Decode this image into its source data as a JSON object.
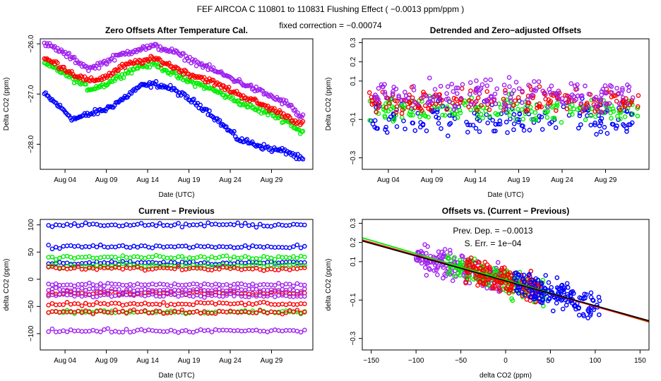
{
  "figure": {
    "suptitle": "FEF   AIRCOA C   110801 to 110831   Flushing Effect ( −0.0013 ppm/ppm )",
    "subtitle": "fixed correction = −0.00074"
  },
  "colors": {
    "blue": "#0000ff",
    "green": "#00ee00",
    "red": "#ff0000",
    "purple": "#a020f0",
    "fit_black": "#000000"
  },
  "chart_data": [
    {
      "id": "p1",
      "type": "scatter",
      "title": "Zero Offsets After Temperature Cal.",
      "xlabel": "Date (UTC)",
      "ylabel": "Delta CO2 (ppm)",
      "xlim": [
        0,
        33
      ],
      "ylim": [
        -28.5,
        -25.9
      ],
      "xticks": [
        {
          "v": 3,
          "label": "Aug 04"
        },
        {
          "v": 8,
          "label": "Aug 09"
        },
        {
          "v": 13,
          "label": "Aug 14"
        },
        {
          "v": 18,
          "label": "Aug 19"
        },
        {
          "v": 23,
          "label": "Aug 24"
        },
        {
          "v": 28,
          "label": "Aug 29"
        }
      ],
      "yticks": [
        {
          "v": -28.0,
          "label": "−28.0"
        },
        {
          "v": -27.0,
          "label": "−27.0"
        },
        {
          "v": -26.0,
          "label": "−26.0"
        }
      ],
      "series": [
        {
          "name": "blue",
          "color": "#0000ff",
          "x": [
            0.5,
            2,
            4,
            6,
            8,
            10,
            12,
            14,
            16,
            18,
            20,
            22,
            24,
            26,
            28,
            30,
            31.5
          ],
          "y": [
            -27.0,
            -27.2,
            -27.5,
            -27.4,
            -27.3,
            -27.1,
            -26.85,
            -26.8,
            -26.9,
            -27.1,
            -27.3,
            -27.6,
            -27.9,
            -28.0,
            -28.1,
            -28.15,
            -28.3
          ]
        },
        {
          "name": "green",
          "color": "#00ee00",
          "x": [
            0.5,
            2,
            4,
            6,
            8,
            10,
            12,
            14,
            16,
            18,
            20,
            22,
            24,
            26,
            28,
            30,
            31.5
          ],
          "y": [
            -26.4,
            -26.5,
            -26.7,
            -26.9,
            -26.8,
            -26.6,
            -26.45,
            -26.4,
            -26.6,
            -26.75,
            -26.85,
            -27.0,
            -27.15,
            -27.3,
            -27.4,
            -27.55,
            -27.75
          ]
        },
        {
          "name": "red",
          "color": "#ff0000",
          "x": [
            0.5,
            2,
            4,
            6,
            8,
            10,
            12,
            14,
            16,
            18,
            20,
            22,
            24,
            26,
            28,
            30,
            31.5
          ],
          "y": [
            -26.3,
            -26.4,
            -26.6,
            -26.75,
            -26.65,
            -26.45,
            -26.35,
            -26.3,
            -26.45,
            -26.6,
            -26.7,
            -26.85,
            -27.0,
            -27.15,
            -27.3,
            -27.45,
            -27.6
          ]
        },
        {
          "name": "purple",
          "color": "#a020f0",
          "x": [
            0.5,
            2,
            4,
            6,
            8,
            10,
            12,
            14,
            16,
            18,
            20,
            22,
            24,
            26,
            28,
            30,
            31.5
          ],
          "y": [
            -26.0,
            -26.1,
            -26.3,
            -26.5,
            -26.35,
            -26.2,
            -26.1,
            -26.05,
            -26.15,
            -26.3,
            -26.45,
            -26.6,
            -26.75,
            -26.9,
            -27.05,
            -27.2,
            -27.45
          ]
        }
      ]
    },
    {
      "id": "p2",
      "type": "scatter",
      "title": "Detrended and Zero−adjusted Offsets",
      "xlabel": "Date (UTC)",
      "ylabel": "Delta CO2 (ppm)",
      "xlim": [
        0,
        33
      ],
      "ylim": [
        -0.36,
        0.32
      ],
      "xticks": [
        {
          "v": 3,
          "label": "Aug 04"
        },
        {
          "v": 8,
          "label": "Aug 09"
        },
        {
          "v": 13,
          "label": "Aug 14"
        },
        {
          "v": 18,
          "label": "Aug 19"
        },
        {
          "v": 23,
          "label": "Aug 24"
        },
        {
          "v": 28,
          "label": "Aug 29"
        }
      ],
      "yticks": [
        {
          "v": -0.3,
          "label": "−0.3"
        },
        {
          "v": -0.1,
          "label": "−0.1"
        },
        {
          "v": 0.1,
          "label": "0.1"
        },
        {
          "v": 0.2,
          "label": "0.2"
        },
        {
          "v": 0.3,
          "label": "0.3"
        }
      ],
      "series": [
        {
          "name": "blue",
          "color": "#0000ff",
          "x": [
            0.5,
            32
          ],
          "y": [
            -0.1,
            -0.1
          ],
          "spread": 0.12
        },
        {
          "name": "green",
          "color": "#00ee00",
          "x": [
            0.5,
            32
          ],
          "y": [
            -0.05,
            -0.05
          ],
          "spread": 0.08
        },
        {
          "name": "red",
          "color": "#ff0000",
          "x": [
            0.5,
            32
          ],
          "y": [
            0.0,
            0.0
          ],
          "spread": 0.08
        },
        {
          "name": "purple",
          "color": "#a020f0",
          "x": [
            0.5,
            32
          ],
          "y": [
            0.03,
            0.03
          ],
          "spread": 0.1
        }
      ]
    },
    {
      "id": "p3",
      "type": "scatter",
      "title": "Current − Previous",
      "xlabel": "Date (UTC)",
      "ylabel": "delta CO2 (ppm)",
      "xlim": [
        0,
        33
      ],
      "ylim": [
        -130,
        110
      ],
      "xticks": [
        {
          "v": 3,
          "label": "Aug 04"
        },
        {
          "v": 8,
          "label": "Aug 09"
        },
        {
          "v": 13,
          "label": "Aug 14"
        },
        {
          "v": 18,
          "label": "Aug 19"
        },
        {
          "v": 23,
          "label": "Aug 24"
        },
        {
          "v": 28,
          "label": "Aug 29"
        }
      ],
      "yticks": [
        {
          "v": -100,
          "label": "−100"
        },
        {
          "v": -50,
          "label": "−50"
        },
        {
          "v": 0,
          "label": "0"
        },
        {
          "v": 50,
          "label": "50"
        },
        {
          "v": 100,
          "label": "100"
        }
      ],
      "series": [
        {
          "name": "blue",
          "color": "#0000ff",
          "levels": [
            100,
            60,
            30
          ]
        },
        {
          "name": "green",
          "color": "#00ee00",
          "levels": [
            40,
            25,
            -60
          ]
        },
        {
          "name": "red",
          "color": "#ff0000",
          "levels": [
            20,
            -25,
            -45,
            -60
          ]
        },
        {
          "name": "purple",
          "color": "#a020f0",
          "levels": [
            -10,
            -20,
            -30,
            -95
          ]
        }
      ]
    },
    {
      "id": "p4",
      "type": "scatter",
      "title": "Offsets vs. (Current − Previous)",
      "xlabel": "delta CO2 (ppm)",
      "ylabel": "delta CO2 (ppm)",
      "xlim": [
        -160,
        160
      ],
      "ylim": [
        -0.36,
        0.32
      ],
      "xticks": [
        {
          "v": -150,
          "label": "−150"
        },
        {
          "v": -100,
          "label": "−100"
        },
        {
          "v": -50,
          "label": "−50"
        },
        {
          "v": 0,
          "label": "0"
        },
        {
          "v": 50,
          "label": "50"
        },
        {
          "v": 100,
          "label": "100"
        },
        {
          "v": 150,
          "label": "150"
        }
      ],
      "yticks": [
        {
          "v": -0.3,
          "label": "−0.3"
        },
        {
          "v": -0.1,
          "label": "−0.1"
        },
        {
          "v": 0.1,
          "label": "0.1"
        },
        {
          "v": 0.2,
          "label": "0.2"
        },
        {
          "v": 0.3,
          "label": "0.3"
        }
      ],
      "annotations": [
        {
          "text": "Prev. Dep. =  −0.0013"
        },
        {
          "text": "S. Err. =  1e−04"
        }
      ],
      "fit_lines": [
        {
          "color": "#00ee00",
          "slope": -0.00137,
          "intercept": 0.005
        },
        {
          "color": "#ff0000",
          "slope": -0.00133,
          "intercept": 0.0
        },
        {
          "color": "#000000",
          "slope": -0.0013,
          "intercept": 0.0
        }
      ],
      "series": [
        {
          "name": "purple",
          "color": "#a020f0",
          "xrange": [
            -100,
            -5
          ],
          "center": [
            -60,
            0.07
          ]
        },
        {
          "name": "green",
          "color": "#00ee00",
          "xrange": [
            -65,
            45
          ],
          "center": [
            30,
            -0.03
          ]
        },
        {
          "name": "red",
          "color": "#ff0000",
          "xrange": [
            -45,
            40
          ],
          "center": [
            20,
            -0.05
          ]
        },
        {
          "name": "blue",
          "color": "#0000ff",
          "xrange": [
            10,
            105
          ],
          "center": [
            70,
            -0.1
          ]
        }
      ]
    }
  ]
}
